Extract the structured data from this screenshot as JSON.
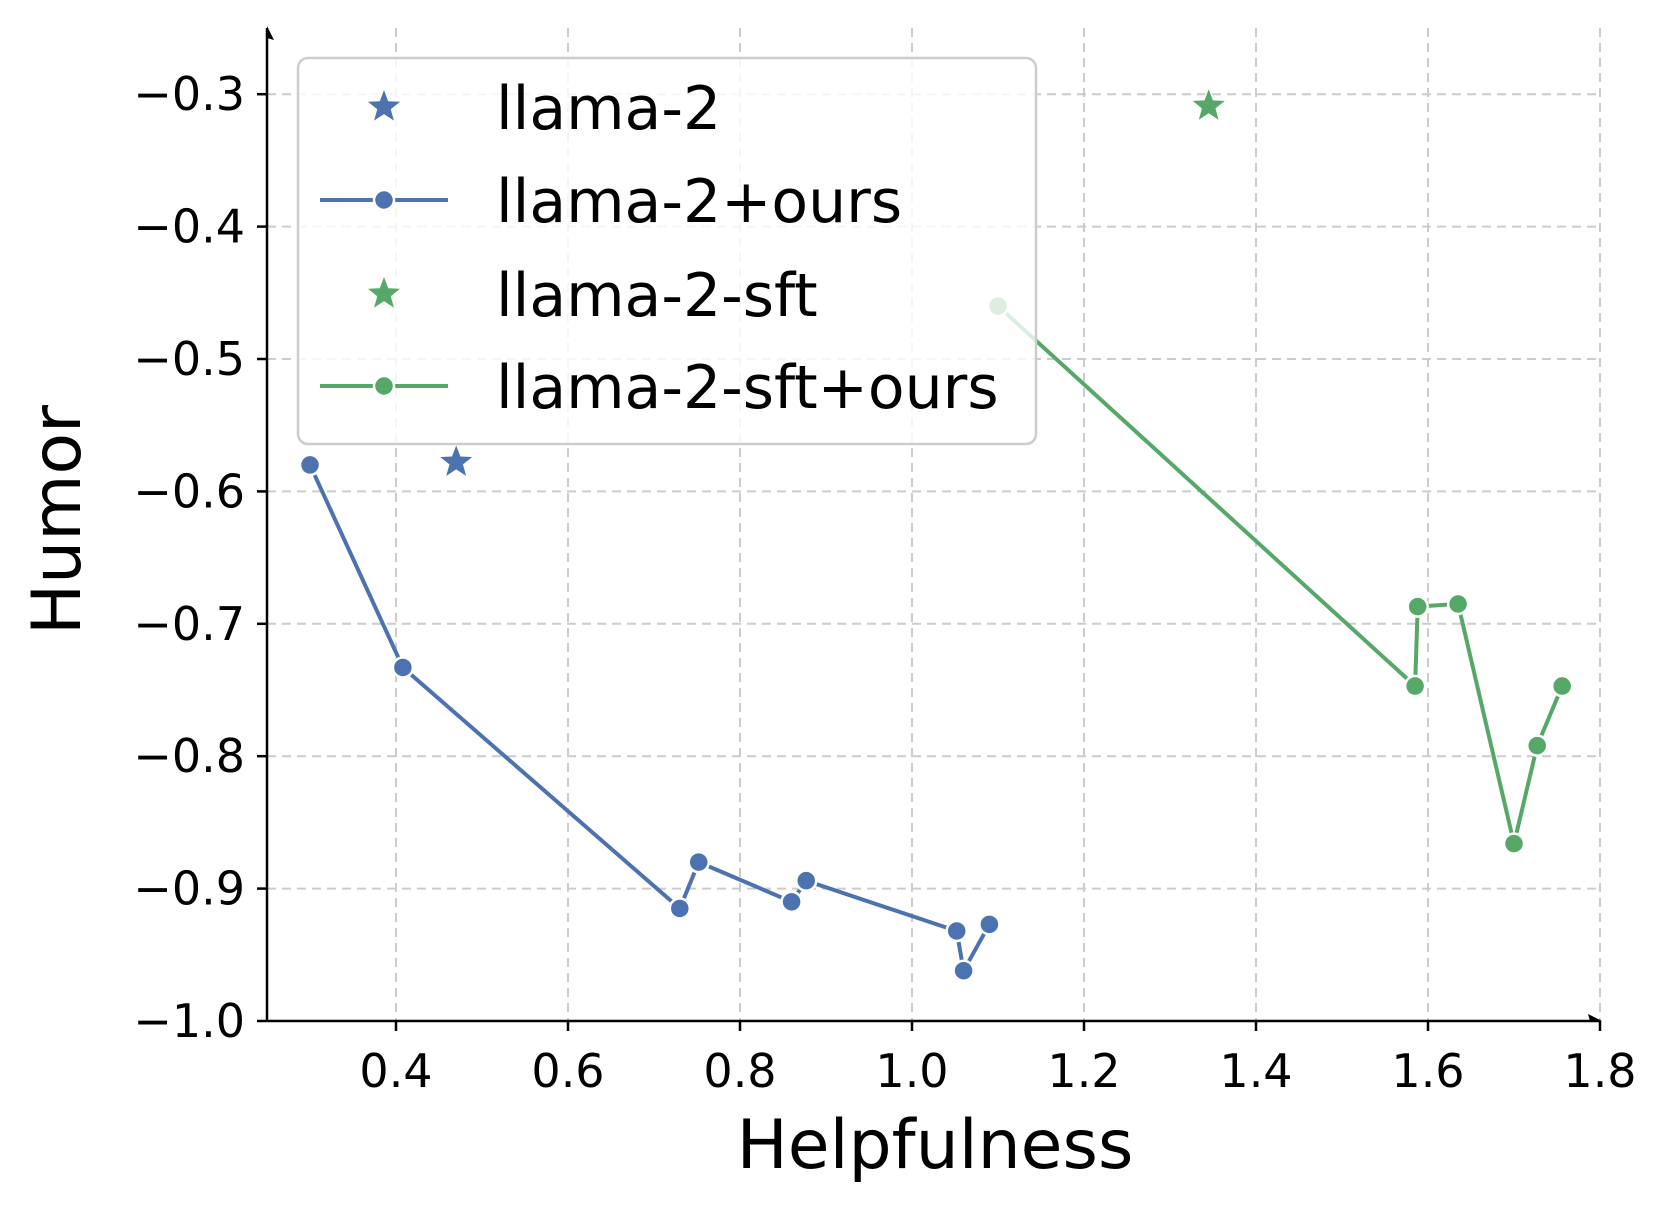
{
  "chart_data": {
    "type": "line",
    "title": "",
    "xlabel": "Helpfulness",
    "ylabel": "Humor",
    "xlim": [
      0.25,
      1.8
    ],
    "ylim": [
      -1.0,
      -0.25
    ],
    "x_ticks": [
      0.4,
      0.6,
      0.8,
      1.0,
      1.2,
      1.4,
      1.6,
      1.8
    ],
    "x_tick_labels": [
      "0.4",
      "0.6",
      "0.8",
      "1.0",
      "1.2",
      "1.4",
      "1.6",
      "1.8"
    ],
    "y_ticks": [
      -1.0,
      -0.9,
      -0.8,
      -0.7,
      -0.6,
      -0.5,
      -0.4,
      -0.3
    ],
    "y_tick_labels": [
      "−1.0",
      "−0.9",
      "−0.8",
      "−0.7",
      "−0.6",
      "−0.5",
      "−0.4",
      "−0.3"
    ],
    "grid": true,
    "legend_position": "top-left",
    "series": [
      {
        "name": "llama-2",
        "kind": "star",
        "color": "#4c72b0",
        "points": [
          [
            0.47,
            -0.578
          ]
        ]
      },
      {
        "name": "llama-2+ours",
        "kind": "line",
        "color": "#4c72b0",
        "points": [
          [
            0.3,
            -0.58
          ],
          [
            0.408,
            -0.733
          ],
          [
            0.73,
            -0.915
          ],
          [
            0.752,
            -0.88
          ],
          [
            0.86,
            -0.91
          ],
          [
            0.877,
            -0.894
          ],
          [
            1.052,
            -0.932
          ],
          [
            1.06,
            -0.962
          ],
          [
            1.09,
            -0.927
          ]
        ]
      },
      {
        "name": "llama-2-sft",
        "kind": "star",
        "color": "#55a868",
        "points": [
          [
            1.345,
            -0.309
          ]
        ]
      },
      {
        "name": "llama-2-sft+ours",
        "kind": "line",
        "color": "#55a868",
        "points": [
          [
            1.1,
            -0.46
          ],
          [
            1.585,
            -0.747
          ],
          [
            1.588,
            -0.687
          ],
          [
            1.635,
            -0.685
          ],
          [
            1.7,
            -0.866
          ],
          [
            1.727,
            -0.792
          ],
          [
            1.756,
            -0.747
          ]
        ]
      }
    ]
  }
}
